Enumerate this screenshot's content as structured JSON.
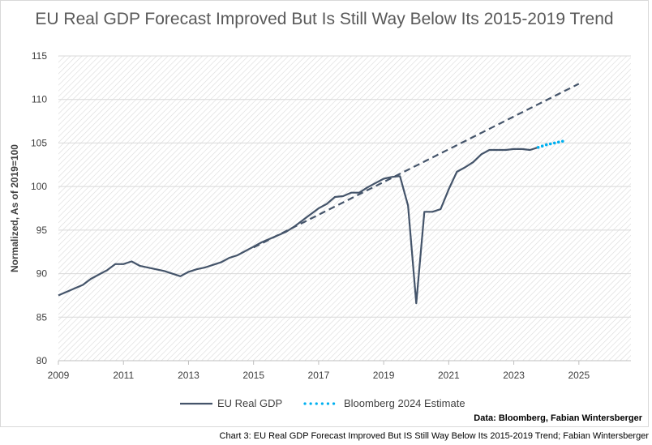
{
  "caption": "Chart 3: EU Real GDP Forecast Improved But IS Still Way Below Its 2015-2019 Trend; Fabian Wintersberger",
  "source_note": "Data: Bloomberg, Fabian Wintersberger",
  "colors": {
    "gdp": "#44546a",
    "estimate": "#00b0f0",
    "trend": "#44546a",
    "hatch": "#d9d9d9"
  },
  "chart_data": {
    "type": "line",
    "title": "EU Real GDP Forecast Improved But Is Still Way Below Its 2015-2019 Trend",
    "ylabel": "Normalized, As of 2019=100",
    "xlabel": "",
    "xlim": [
      2009,
      2026.6
    ],
    "ylim": [
      80,
      115
    ],
    "xticks": [
      "2009",
      "2011",
      "2013",
      "2015",
      "2017",
      "2019",
      "2021",
      "2023",
      "2025"
    ],
    "yticks": [
      "80",
      "85",
      "90",
      "95",
      "100",
      "105",
      "110",
      "115"
    ],
    "grid": true,
    "legend_position": "bottom",
    "series": [
      {
        "name": "EU Real GDP",
        "style": "solid",
        "x": [
          2009.0,
          2009.25,
          2009.5,
          2009.75,
          2010.0,
          2010.25,
          2010.5,
          2010.75,
          2011.0,
          2011.25,
          2011.5,
          2011.75,
          2012.0,
          2012.25,
          2012.5,
          2012.75,
          2013.0,
          2013.25,
          2013.5,
          2013.75,
          2014.0,
          2014.25,
          2014.5,
          2014.75,
          2015.0,
          2015.25,
          2015.5,
          2015.75,
          2016.0,
          2016.25,
          2016.5,
          2016.75,
          2017.0,
          2017.25,
          2017.5,
          2017.75,
          2018.0,
          2018.25,
          2018.5,
          2018.75,
          2019.0,
          2019.25,
          2019.5,
          2019.75,
          2020.0,
          2020.25,
          2020.5,
          2020.75,
          2021.0,
          2021.25,
          2021.5,
          2021.75,
          2022.0,
          2022.25,
          2022.5,
          2022.75,
          2023.0,
          2023.25,
          2023.5,
          2023.75
        ],
        "values": [
          87.5,
          87.9,
          88.3,
          88.7,
          89.4,
          89.9,
          90.4,
          91.1,
          91.1,
          91.4,
          90.9,
          90.7,
          90.5,
          90.3,
          90.0,
          89.7,
          90.2,
          90.5,
          90.7,
          91.0,
          91.3,
          91.8,
          92.1,
          92.6,
          93.1,
          93.6,
          94.0,
          94.4,
          94.8,
          95.4,
          96.1,
          96.8,
          97.5,
          98.0,
          98.8,
          98.9,
          99.3,
          99.3,
          99.9,
          100.4,
          100.9,
          101.1,
          101.2,
          97.8,
          86.6,
          97.1,
          97.1,
          97.4,
          99.7,
          101.7,
          102.2,
          102.8,
          103.7,
          104.2,
          104.2,
          104.2,
          104.3,
          104.3,
          104.2,
          104.5
        ]
      },
      {
        "name": "Bloomberg 2024 Estimate",
        "style": "dotted",
        "x": [
          2023.75,
          2024.0,
          2024.25,
          2024.5
        ],
        "values": [
          104.5,
          104.8,
          105.0,
          105.2
        ]
      },
      {
        "style": "dashed",
        "x": [
          2015.0,
          2025.0
        ],
        "values": [
          93.0,
          111.8
        ]
      }
    ]
  }
}
